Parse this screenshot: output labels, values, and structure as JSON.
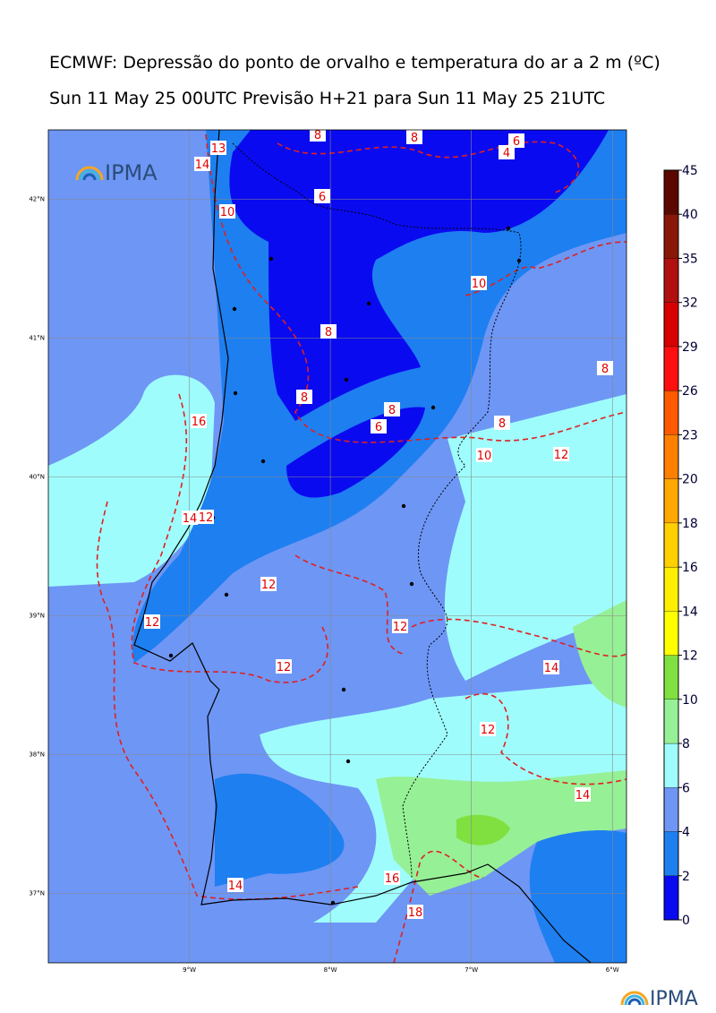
{
  "title": "ECMWF: Depressão do ponto de orvalho e temperatura do ar a 2 m (ºC)",
  "subtitle": "Sun 11 May 25 00UTC Previsão H+21 para Sun 11 May 25 21UTC",
  "logo_text": "IPMA",
  "map": {
    "lon_range": [
      -10,
      -5.9
    ],
    "lat_range": [
      36.5,
      42.5
    ],
    "lon_ticks": [
      {
        "value": -9,
        "label": "9°W"
      },
      {
        "value": -8,
        "label": "8°W"
      },
      {
        "value": -7,
        "label": "7°W"
      },
      {
        "value": -6,
        "label": "6°W"
      }
    ],
    "lat_ticks": [
      {
        "value": 42,
        "label": "42°N"
      },
      {
        "value": 41,
        "label": "41°N"
      },
      {
        "value": 40,
        "label": "40°N"
      },
      {
        "value": 39,
        "label": "39°N"
      },
      {
        "value": 38,
        "label": "38°N"
      },
      {
        "value": 37,
        "label": "37°N"
      }
    ],
    "contour_labels": [
      8,
      8,
      6,
      4,
      14,
      13,
      6,
      10,
      10,
      8,
      8,
      8,
      6,
      8,
      10,
      12,
      8,
      16,
      14,
      12,
      12,
      12,
      12,
      12,
      14,
      12,
      14,
      14,
      16,
      18
    ]
  },
  "colorbar": {
    "ticks": [
      0,
      2,
      4,
      6,
      8,
      10,
      12,
      14,
      16,
      18,
      20,
      23,
      26,
      29,
      32,
      35,
      40,
      45
    ],
    "colors": [
      "#0a0af0",
      "#1e7ff0",
      "#6e96f5",
      "#9ffcfc",
      "#96f096",
      "#80e040",
      "#ffff00",
      "#ffee00",
      "#ffd000",
      "#ffa800",
      "#ff8000",
      "#ff5a00",
      "#ff1010",
      "#d80000",
      "#b01010",
      "#8a1808",
      "#5a0800"
    ]
  }
}
